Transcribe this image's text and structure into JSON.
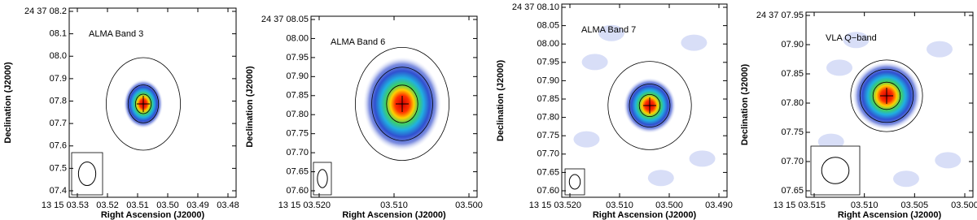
{
  "panels": [
    {
      "title": "ALMA Band 3",
      "xlabel": "Right Ascension (J2000)",
      "ylabel": "Declination (J2000)",
      "yticks": [
        "24 37 08.2",
        "08.1",
        "08.0",
        "07.9",
        "07.8",
        "07.7",
        "07.6",
        "07.5",
        "07.4"
      ],
      "xticks": [
        "13 15 03.53",
        "03.52",
        "03.51",
        "03.50",
        "03.49",
        "03.48"
      ]
    },
    {
      "title": "ALMA Band 6",
      "xlabel": "Right Ascension (J2000)",
      "ylabel": "Declination (J2000)",
      "yticks": [
        "24 37 08.05",
        "08.00",
        "07.95",
        "07.90",
        "07.85",
        "07.80",
        "07.75",
        "07.70",
        "07.65",
        "07.60"
      ],
      "xticks": [
        "13 15 03.520",
        "03.510",
        "03.500"
      ]
    },
    {
      "title": "ALMA Band 7",
      "xlabel": "Right Ascension (J2000)",
      "ylabel": "Declination (J2000)",
      "yticks": [
        "24 37 08.10",
        "08.05",
        "08.00",
        "07.95",
        "07.90",
        "07.85",
        "07.80",
        "07.75",
        "07.70",
        "07.65",
        "07.60"
      ],
      "xticks": [
        "13 15 03.520",
        "03.510",
        "03.500",
        "03.490"
      ]
    },
    {
      "title": "VLA Q−band",
      "xlabel": "Right Ascension (J2000)",
      "ylabel": "Declination (J2000)",
      "yticks": [
        "24 37 07.95",
        "07.90",
        "07.85",
        "07.80",
        "07.75",
        "07.70",
        "07.65"
      ],
      "xticks": [
        "13 15 03.515",
        "03.510",
        "03.505",
        "03.500"
      ]
    }
  ]
}
